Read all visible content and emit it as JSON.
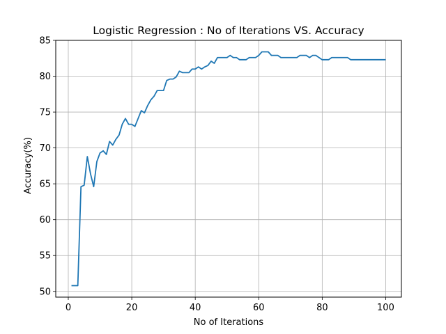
{
  "chart_data": {
    "type": "line",
    "title": "Logistic Regression : No of Iterations VS. Accuracy",
    "xlabel": "No of Iterations",
    "ylabel": "Accuracy(%)",
    "xlim": [
      -3.95,
      104.95
    ],
    "ylim": [
      49.2,
      85
    ],
    "xticks": [
      0,
      20,
      40,
      60,
      80,
      100
    ],
    "yticks": [
      50,
      55,
      60,
      65,
      70,
      75,
      80,
      85
    ],
    "grid": true,
    "line_color": "#1f77b4",
    "series": [
      {
        "x": [
          1,
          2,
          3,
          4,
          5,
          6,
          7,
          8,
          9,
          10,
          11,
          12,
          13,
          14,
          15,
          16,
          17,
          18,
          19,
          20,
          21,
          22,
          23,
          24,
          25,
          26,
          27,
          28,
          29,
          30,
          31,
          32,
          33,
          34,
          35,
          36,
          37,
          38,
          39,
          40,
          41,
          42,
          43,
          44,
          45,
          46,
          47,
          48,
          49,
          50,
          51,
          52,
          53,
          54,
          55,
          56,
          57,
          58,
          59,
          60,
          61,
          62,
          63,
          64,
          65,
          66,
          67,
          68,
          69,
          70,
          71,
          72,
          73,
          74,
          75,
          76,
          77,
          78,
          79,
          80,
          81,
          82,
          83,
          84,
          85,
          86,
          87,
          88,
          89,
          90,
          91,
          92,
          93,
          94,
          95,
          96,
          97,
          98,
          99,
          100
        ],
        "values": [
          50.8,
          50.8,
          50.8,
          64.6,
          64.8,
          68.8,
          66.4,
          64.6,
          68.1,
          69.3,
          69.6,
          69.1,
          70.9,
          70.4,
          71.2,
          71.8,
          73.3,
          74.1,
          73.3,
          73.3,
          73.0,
          74.1,
          75.2,
          74.9,
          75.9,
          76.7,
          77.2,
          78.0,
          78.0,
          78.0,
          79.4,
          79.6,
          79.6,
          79.9,
          80.7,
          80.5,
          80.5,
          80.5,
          81.0,
          81.0,
          81.3,
          81.0,
          81.3,
          81.5,
          82.1,
          81.8,
          82.6,
          82.6,
          82.6,
          82.6,
          82.9,
          82.6,
          82.6,
          82.3,
          82.3,
          82.3,
          82.6,
          82.6,
          82.6,
          82.9,
          83.4,
          83.4,
          83.4,
          82.9,
          82.9,
          82.9,
          82.6,
          82.6,
          82.6,
          82.6,
          82.6,
          82.6,
          82.9,
          82.9,
          82.9,
          82.6,
          82.9,
          82.9,
          82.6,
          82.3,
          82.3,
          82.3,
          82.6,
          82.6,
          82.6,
          82.6,
          82.6,
          82.6,
          82.3,
          82.3,
          82.3,
          82.3,
          82.3,
          82.3,
          82.3,
          82.3,
          82.3,
          82.3,
          82.3,
          82.3
        ]
      }
    ]
  }
}
